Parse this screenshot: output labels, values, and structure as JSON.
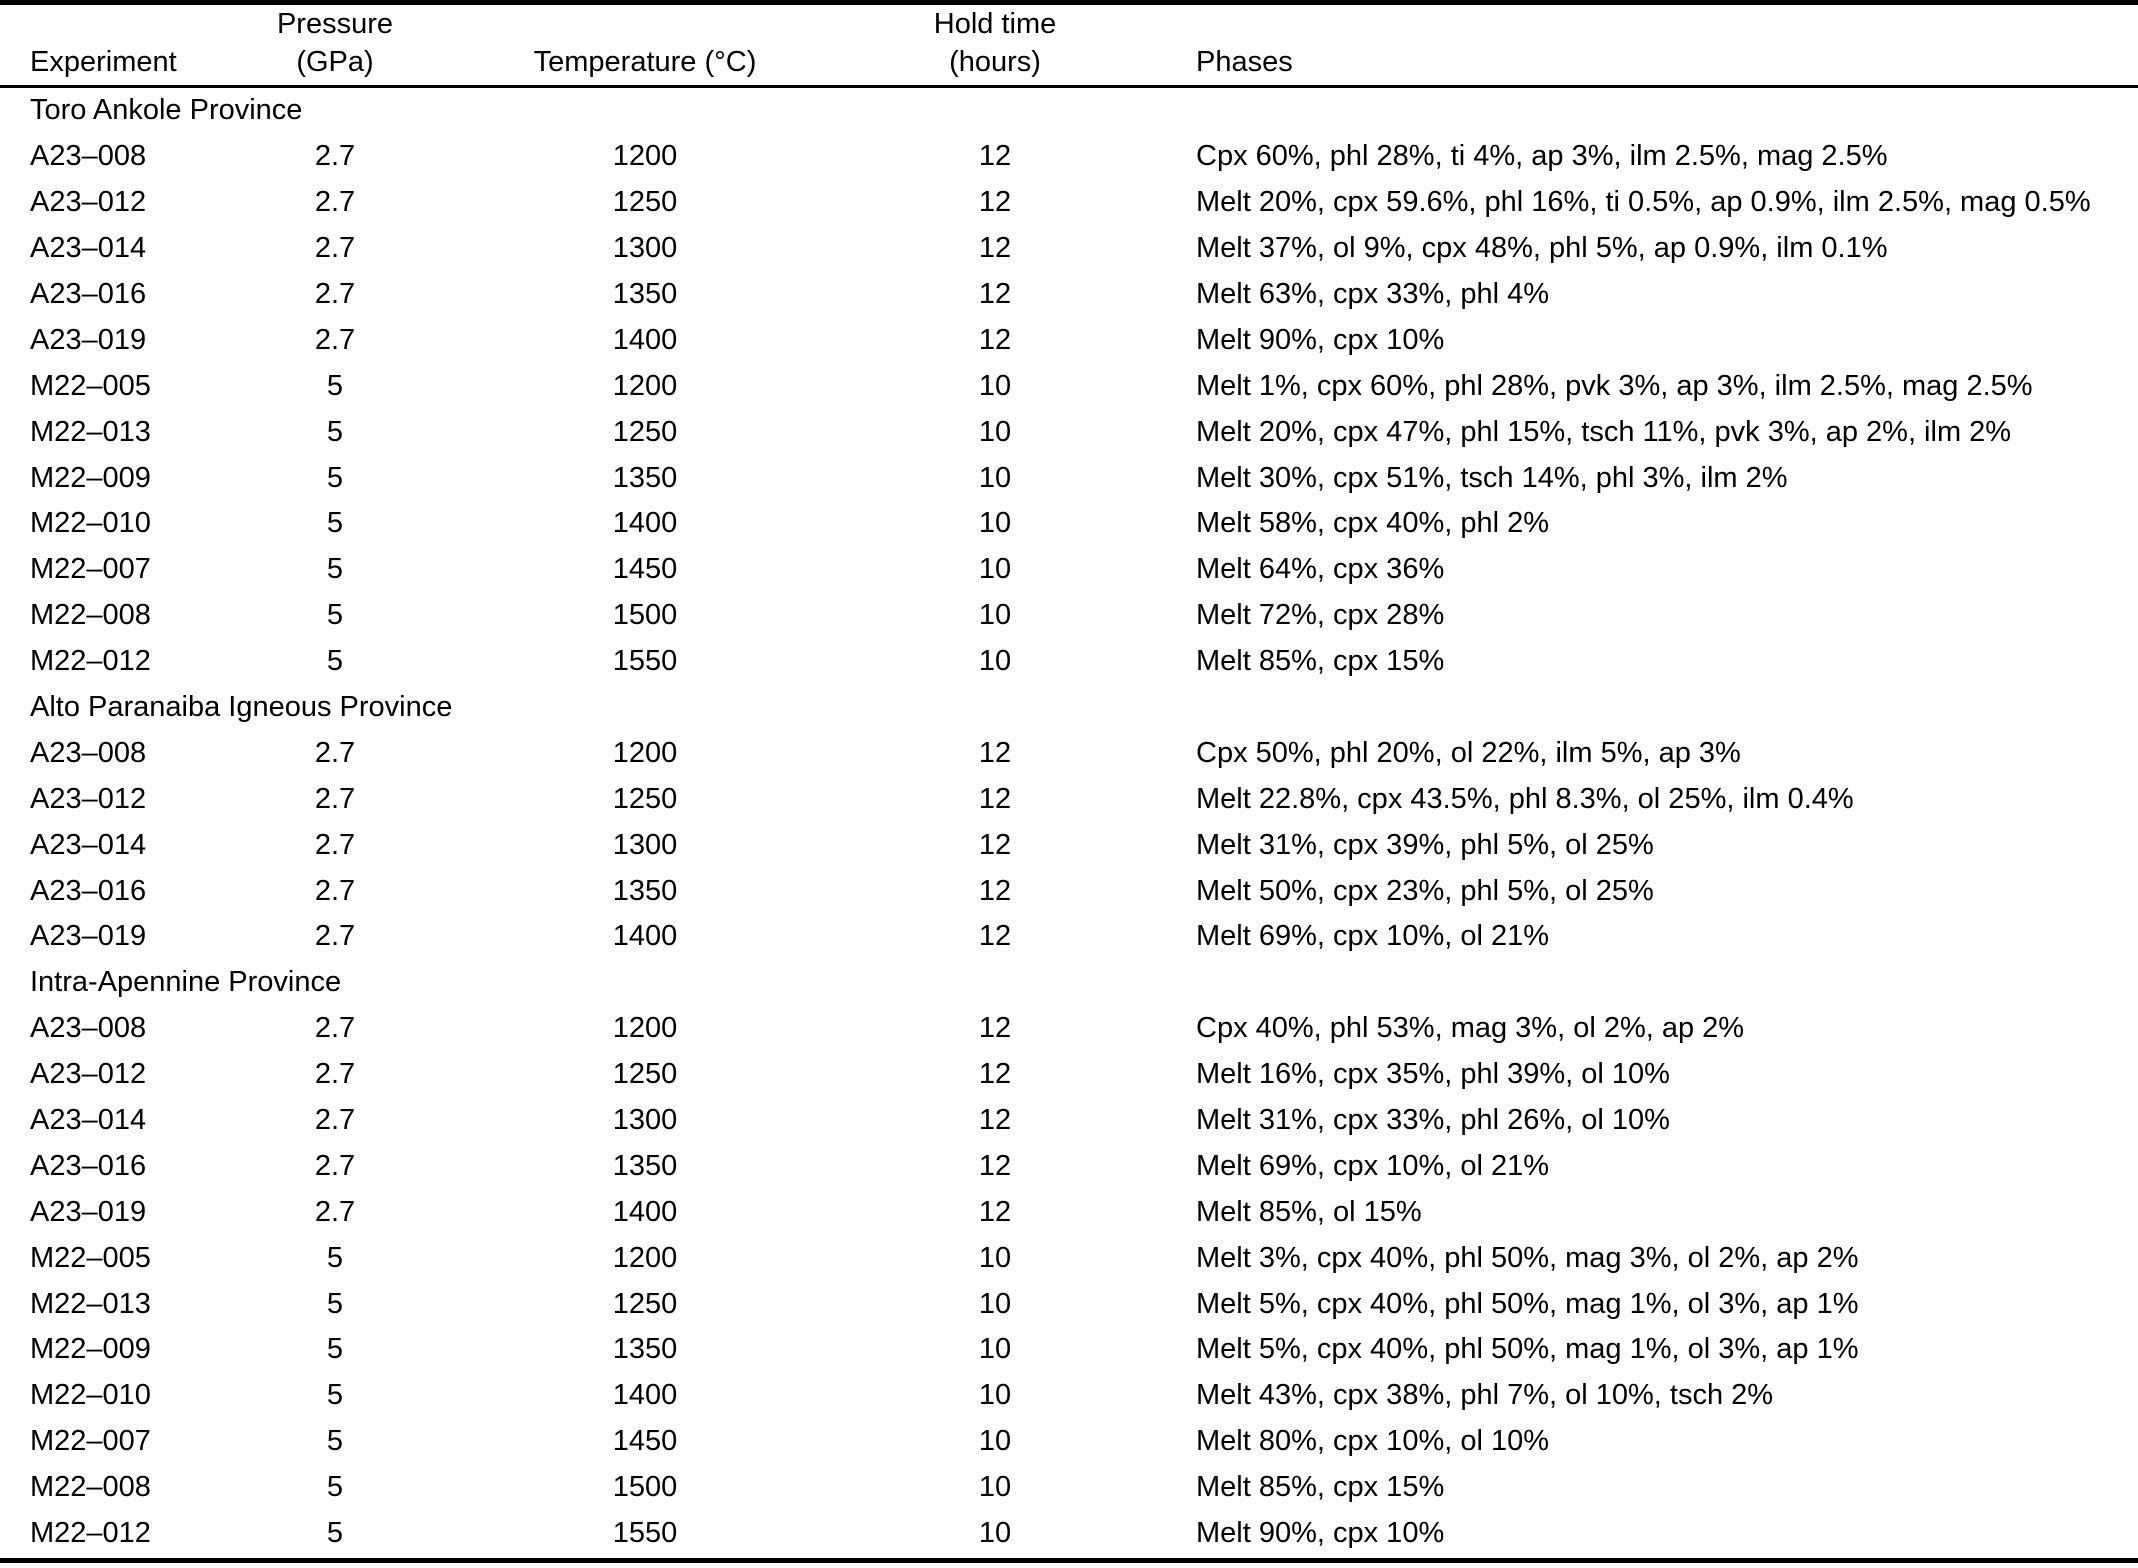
{
  "table": {
    "header": {
      "experiment": "Experiment",
      "pressure_line1": "Pressure",
      "pressure_line2": "(GPa)",
      "temperature": "Temperature (°C)",
      "hold_time_line1": "Hold time",
      "hold_time_line2": "(hours)",
      "phases": "Phases"
    },
    "sections": [
      {
        "title": "Toro Ankole Province",
        "rows": [
          {
            "experiment": "A23–008",
            "pressure": "2.7",
            "temperature": "1200",
            "hold_time": "12",
            "phases": "Cpx 60%, phl 28%, ti 4%, ap 3%, ilm 2.5%, mag 2.5%"
          },
          {
            "experiment": "A23–012",
            "pressure": "2.7",
            "temperature": "1250",
            "hold_time": "12",
            "phases": "Melt 20%, cpx 59.6%, phl 16%, ti 0.5%, ap 0.9%, ilm 2.5%, mag 0.5%"
          },
          {
            "experiment": "A23–014",
            "pressure": "2.7",
            "temperature": "1300",
            "hold_time": "12",
            "phases": "Melt 37%, ol 9%, cpx 48%, phl 5%, ap 0.9%, ilm 0.1%"
          },
          {
            "experiment": "A23–016",
            "pressure": "2.7",
            "temperature": "1350",
            "hold_time": "12",
            "phases": "Melt 63%, cpx 33%, phl 4%"
          },
          {
            "experiment": "A23–019",
            "pressure": "2.7",
            "temperature": "1400",
            "hold_time": "12",
            "phases": "Melt 90%, cpx 10%"
          },
          {
            "experiment": "M22–005",
            "pressure": "5",
            "temperature": "1200",
            "hold_time": "10",
            "phases": "Melt 1%, cpx 60%, phl 28%, pvk 3%, ap 3%, ilm 2.5%, mag 2.5%"
          },
          {
            "experiment": "M22–013",
            "pressure": "5",
            "temperature": "1250",
            "hold_time": "10",
            "phases": "Melt 20%, cpx 47%, phl 15%, tsch 11%, pvk 3%, ap 2%, ilm 2%"
          },
          {
            "experiment": "M22–009",
            "pressure": "5",
            "temperature": "1350",
            "hold_time": "10",
            "phases": "Melt 30%, cpx 51%, tsch 14%, phl 3%, ilm 2%"
          },
          {
            "experiment": "M22–010",
            "pressure": "5",
            "temperature": "1400",
            "hold_time": "10",
            "phases": "Melt 58%, cpx 40%, phl 2%"
          },
          {
            "experiment": "M22–007",
            "pressure": "5",
            "temperature": "1450",
            "hold_time": "10",
            "phases": "Melt 64%, cpx 36%"
          },
          {
            "experiment": "M22–008",
            "pressure": "5",
            "temperature": "1500",
            "hold_time": "10",
            "phases": "Melt 72%, cpx 28%"
          },
          {
            "experiment": "M22–012",
            "pressure": "5",
            "temperature": "1550",
            "hold_time": "10",
            "phases": "Melt 85%, cpx 15%"
          }
        ]
      },
      {
        "title": "Alto Paranaiba Igneous Province",
        "rows": [
          {
            "experiment": "A23–008",
            "pressure": "2.7",
            "temperature": "1200",
            "hold_time": "12",
            "phases": "Cpx 50%, phl 20%, ol 22%, ilm 5%, ap 3%"
          },
          {
            "experiment": "A23–012",
            "pressure": "2.7",
            "temperature": "1250",
            "hold_time": "12",
            "phases": "Melt 22.8%, cpx 43.5%, phl 8.3%, ol 25%, ilm 0.4%"
          },
          {
            "experiment": "A23–014",
            "pressure": "2.7",
            "temperature": "1300",
            "hold_time": "12",
            "phases": "Melt 31%, cpx 39%, phl 5%, ol 25%"
          },
          {
            "experiment": "A23–016",
            "pressure": "2.7",
            "temperature": "1350",
            "hold_time": "12",
            "phases": "Melt 50%, cpx 23%, phl 5%, ol 25%"
          },
          {
            "experiment": "A23–019",
            "pressure": "2.7",
            "temperature": "1400",
            "hold_time": "12",
            "phases": "Melt 69%, cpx 10%, ol 21%"
          }
        ]
      },
      {
        "title": "Intra-Apennine Province",
        "rows": [
          {
            "experiment": "A23–008",
            "pressure": "2.7",
            "temperature": "1200",
            "hold_time": "12",
            "phases": "Cpx 40%, phl 53%, mag 3%, ol 2%, ap 2%"
          },
          {
            "experiment": "A23–012",
            "pressure": "2.7",
            "temperature": "1250",
            "hold_time": "12",
            "phases": "Melt 16%, cpx 35%, phl 39%, ol 10%"
          },
          {
            "experiment": "A23–014",
            "pressure": "2.7",
            "temperature": "1300",
            "hold_time": "12",
            "phases": "Melt 31%, cpx 33%, phl 26%, ol 10%"
          },
          {
            "experiment": "A23–016",
            "pressure": "2.7",
            "temperature": "1350",
            "hold_time": "12",
            "phases": "Melt 69%, cpx 10%, ol 21%"
          },
          {
            "experiment": "A23–019",
            "pressure": "2.7",
            "temperature": "1400",
            "hold_time": "12",
            "phases": "Melt 85%, ol 15%"
          },
          {
            "experiment": "M22–005",
            "pressure": "5",
            "temperature": "1200",
            "hold_time": "10",
            "phases": "Melt 3%, cpx 40%, phl 50%, mag 3%, ol 2%, ap 2%"
          },
          {
            "experiment": "M22–013",
            "pressure": "5",
            "temperature": "1250",
            "hold_time": "10",
            "phases": "Melt 5%, cpx 40%, phl 50%, mag 1%, ol 3%, ap 1%"
          },
          {
            "experiment": "M22–009",
            "pressure": "5",
            "temperature": "1350",
            "hold_time": "10",
            "phases": "Melt 5%, cpx 40%, phl 50%, mag 1%, ol 3%, ap 1%"
          },
          {
            "experiment": "M22–010",
            "pressure": "5",
            "temperature": "1400",
            "hold_time": "10",
            "phases": "Melt 43%, cpx 38%, phl 7%, ol 10%, tsch 2%"
          },
          {
            "experiment": "M22–007",
            "pressure": "5",
            "temperature": "1450",
            "hold_time": "10",
            "phases": "Melt 80%, cpx 10%, ol 10%"
          },
          {
            "experiment": "M22–008",
            "pressure": "5",
            "temperature": "1500",
            "hold_time": "10",
            "phases": "Melt 85%, cpx 15%"
          },
          {
            "experiment": "M22–012",
            "pressure": "5",
            "temperature": "1550",
            "hold_time": "10",
            "phases": "Melt 90%, cpx 10%"
          }
        ]
      }
    ]
  }
}
